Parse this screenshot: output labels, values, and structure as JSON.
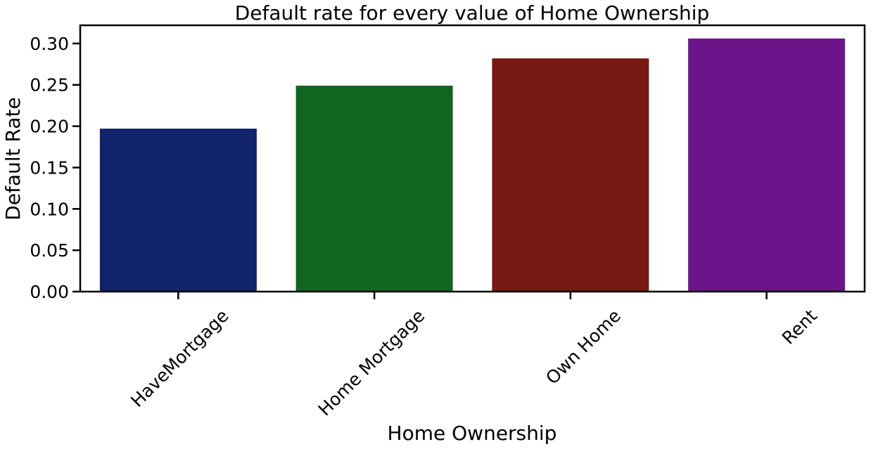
{
  "chart_data": {
    "type": "bar",
    "title": "Default rate for every value of Home Ownership",
    "xlabel": "Home Ownership",
    "ylabel": "Default Rate",
    "categories": [
      "HaveMortgage",
      "Home Mortgage",
      "Own Home",
      "Rent"
    ],
    "values": [
      0.197,
      0.249,
      0.282,
      0.306
    ],
    "colors": [
      "#10236b",
      "#126521",
      "#791913",
      "#6c148a"
    ],
    "ylim": [
      0,
      0.322
    ],
    "yticks": [
      0.0,
      0.05,
      0.1,
      0.15,
      0.2,
      0.25,
      0.3
    ],
    "ytick_labels": [
      "0.00",
      "0.05",
      "0.10",
      "0.15",
      "0.20",
      "0.25",
      "0.30"
    ],
    "grid": false,
    "legend": "none"
  }
}
